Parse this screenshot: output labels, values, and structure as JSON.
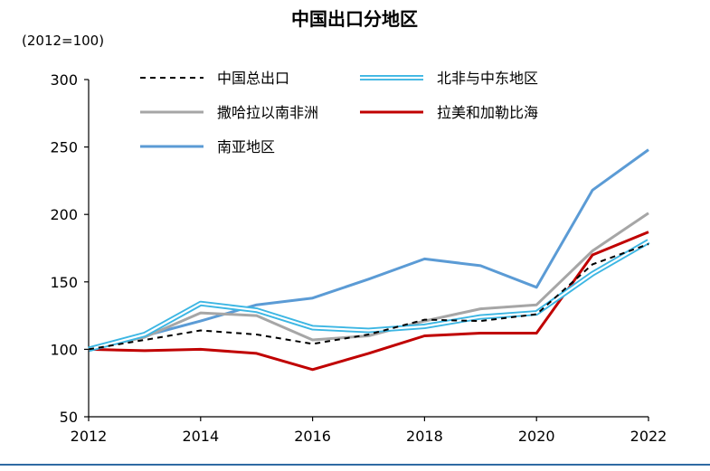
{
  "chart_data": {
    "type": "line",
    "title": "中国出口分地区",
    "unit_label": "(2012=100)",
    "xlabel": "",
    "ylabel": "",
    "x": [
      2012,
      2013,
      2014,
      2015,
      2016,
      2017,
      2018,
      2019,
      2020,
      2021,
      2022
    ],
    "x_tick_labels": [
      "2012",
      "2014",
      "2016",
      "2018",
      "2020",
      "2022"
    ],
    "y_tick_labels": [
      "50",
      "100",
      "150",
      "200",
      "250",
      "300"
    ],
    "xlim": [
      2012,
      2022
    ],
    "ylim": [
      50,
      300
    ],
    "grid": false,
    "legend_position": "top",
    "series": [
      {
        "name": "中国总出口",
        "style": "dashed",
        "color": "#000000",
        "values": [
          100,
          107,
          114,
          111,
          104,
          111,
          122,
          121,
          126,
          163,
          178
        ]
      },
      {
        "name": "北非与中东地区",
        "style": "double",
        "color": "#3cb6e3",
        "values": [
          100,
          111,
          134,
          129,
          116,
          114,
          117,
          124,
          127,
          156,
          180
        ]
      },
      {
        "name": "撒哈拉以南非洲",
        "style": "solid",
        "color": "#a6a6a6",
        "values": [
          100,
          109,
          127,
          125,
          107,
          110,
          121,
          130,
          133,
          173,
          201
        ]
      },
      {
        "name": "拉美和加勒比海",
        "style": "solid",
        "color": "#c00000",
        "values": [
          100,
          99,
          100,
          97,
          85,
          97,
          110,
          112,
          112,
          170,
          187
        ]
      },
      {
        "name": "南亚地区",
        "style": "solid",
        "color": "#5b9bd5",
        "values": [
          100,
          110,
          121,
          133,
          138,
          152,
          167,
          162,
          146,
          218,
          248
        ]
      }
    ]
  }
}
